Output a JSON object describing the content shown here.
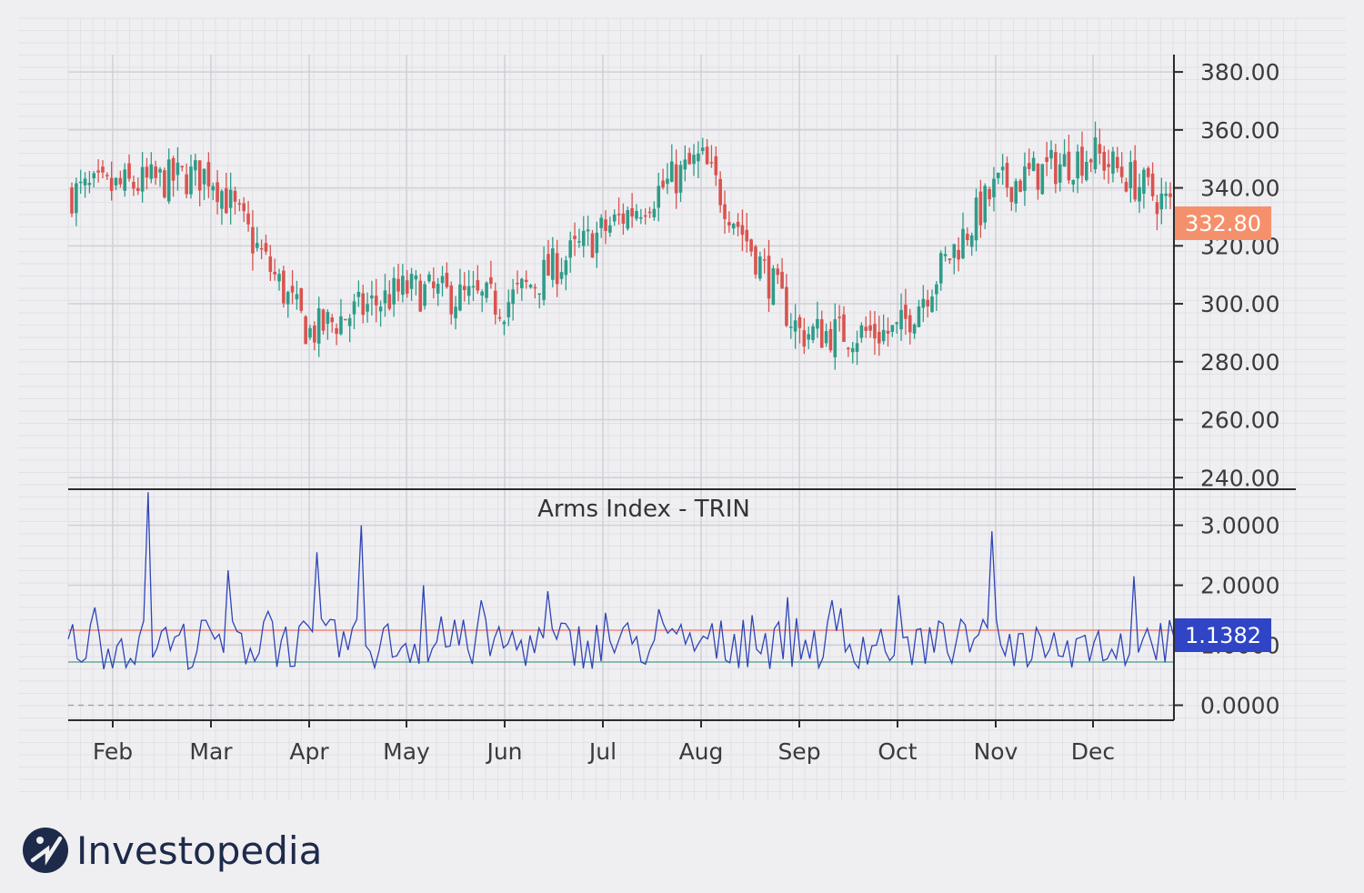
{
  "brand": {
    "name": "Investopedia",
    "icon": "investopedia-logo-icon"
  },
  "colors": {
    "up": "#2e9c88",
    "down": "#d9534f",
    "trin": "#2f45b5",
    "upper_ref": "#f08878",
    "lower_ref": "#6aaa9b",
    "price_badge": "#f4916c",
    "trin_badge": "#2f45c5"
  },
  "months": [
    "Feb",
    "Mar",
    "Apr",
    "May",
    "Jun",
    "Jul",
    "Aug",
    "Sep",
    "Oct",
    "Nov",
    "Dec"
  ],
  "price_panel": {
    "ticks": [
      "380.00",
      "360.00",
      "340.00",
      "320.00",
      "300.00",
      "280.00",
      "260.00",
      "240.00"
    ],
    "last_label": "332.80"
  },
  "trin_panel": {
    "title": "Arms Index - TRIN",
    "ticks": [
      "3.0000",
      "2.0000",
      "1.0000",
      "0.0000"
    ],
    "last_label": "1.1382"
  },
  "chart_data": [
    {
      "type": "candlestick",
      "ylim": [
        236,
        386
      ],
      "x": [
        "Feb",
        "Mar",
        "Apr",
        "May",
        "Jun",
        "Jul",
        "Aug",
        "Sep",
        "Oct",
        "Nov",
        "Dec"
      ],
      "close_by_month": [
        340,
        345,
        290,
        305,
        300,
        325,
        350,
        290,
        290,
        340,
        352
      ],
      "last_close": 332.8,
      "grid": true
    },
    {
      "type": "line",
      "title": "Arms Index - TRIN",
      "ylim": [
        -0.25,
        3.6
      ],
      "reference_lines": [
        1.25,
        0.72,
        0.0
      ],
      "spikes": [
        3.55,
        2.25,
        2.55,
        3.0,
        2.0,
        1.75,
        1.9,
        1.2,
        1.8,
        2.9,
        2.15
      ],
      "last_value": 1.1382,
      "grid": true
    }
  ]
}
